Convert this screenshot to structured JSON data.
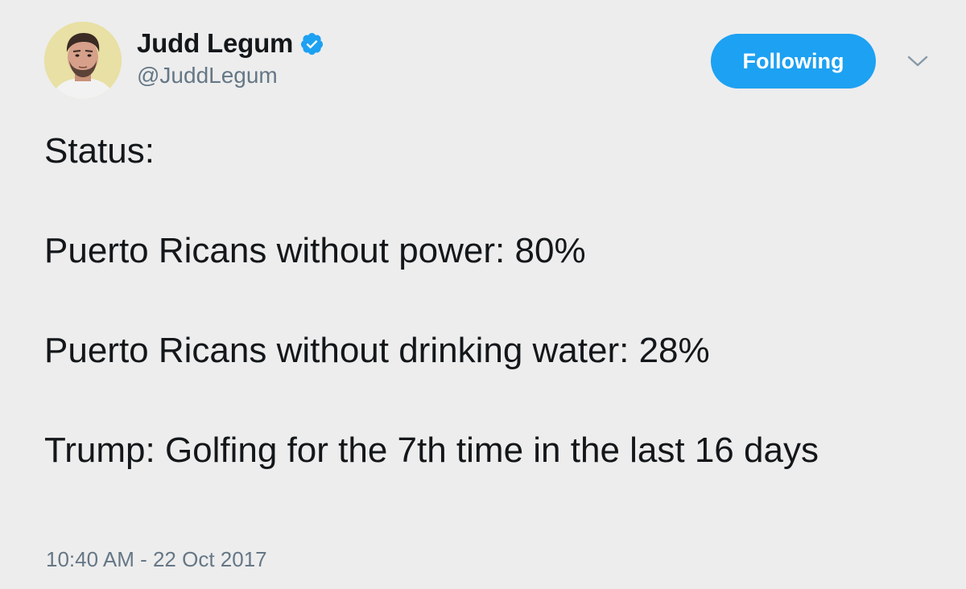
{
  "user": {
    "display_name": "Judd Legum",
    "handle": "@JuddLegum",
    "verified": true,
    "verified_icon": "verified-badge-icon",
    "avatar": "profile-photo"
  },
  "actions": {
    "follow_label": "Following",
    "menu_icon": "chevron-down-icon"
  },
  "tweet": {
    "lines": [
      "Status:",
      "Puerto Ricans without power: 80%",
      "Puerto Ricans without drinking water: 28%",
      "Trump: Golfing for the 7th time in the last 16 days"
    ],
    "timestamp": "10:40 AM - 22 Oct 2017"
  },
  "colors": {
    "background": "#ededed",
    "accent": "#1da1f2",
    "text": "#14171a",
    "muted": "#657786"
  }
}
